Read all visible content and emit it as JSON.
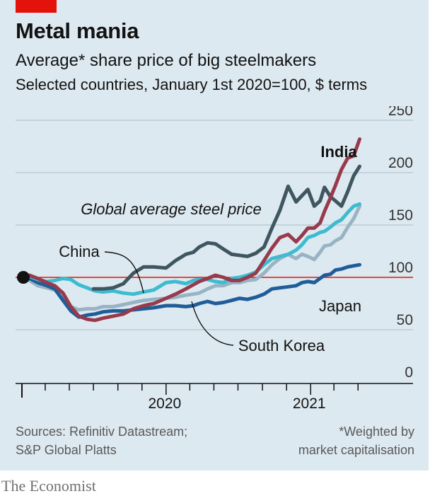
{
  "header": {
    "title": "Metal mania",
    "subtitle": "Average* share price of big steelmakers",
    "subsubtitle": "Selected countries, January 1st 2020=100, $ terms"
  },
  "footer": {
    "sources_line1": "Sources: Refinitiv Datastream;",
    "sources_line2": "S&P Global Platts",
    "note_line1": "*Weighted by",
    "note_line2": "market capitalisation",
    "brand": "The Economist"
  },
  "colors": {
    "panel_bg": "#dde9f0",
    "brand_red": "#e3120b",
    "baseline_red": "#e3120b"
  },
  "chart_data": {
    "type": "line",
    "title": "Average* share price of big steelmakers",
    "subtitle": "Selected countries, January 1st 2020=100, $ terms",
    "y_ticks": [
      0,
      50,
      100,
      150,
      200,
      250
    ],
    "ylim": [
      0,
      250
    ],
    "reference_line": 100,
    "x_tick_labels": [
      {
        "label": "2020",
        "date": "2020-01-01"
      },
      {
        "label": "2021",
        "date": "2021-01-01"
      }
    ],
    "xlim": [
      "2019-01-01",
      "2021-05-31"
    ],
    "grid": "horizontal",
    "labels": {
      "india": "India",
      "global": "Global average steel price",
      "china": "China",
      "japan": "Japan",
      "south_korea": "South Korea"
    },
    "series": [
      {
        "key": "india",
        "name": "India",
        "color": "#973a4b",
        "width": 5,
        "points": [
          [
            "2019-01-01",
            100
          ],
          [
            "2019-01-20",
            102
          ],
          [
            "2019-02-10",
            99
          ],
          [
            "2019-03-05",
            95
          ],
          [
            "2019-03-25",
            92
          ],
          [
            "2019-04-15",
            85
          ],
          [
            "2019-05-05",
            72
          ],
          [
            "2019-05-25",
            63
          ],
          [
            "2019-06-15",
            60
          ],
          [
            "2019-07-05",
            59
          ],
          [
            "2019-07-25",
            61
          ],
          [
            "2019-08-20",
            63
          ],
          [
            "2019-09-15",
            65
          ],
          [
            "2019-10-10",
            70
          ],
          [
            "2019-11-05",
            73
          ],
          [
            "2019-12-01",
            75
          ],
          [
            "2020-01-01",
            80
          ],
          [
            "2020-01-25",
            84
          ],
          [
            "2020-02-20",
            89
          ],
          [
            "2020-03-10",
            93
          ],
          [
            "2020-03-25",
            96
          ],
          [
            "2020-04-15",
            99
          ],
          [
            "2020-05-05",
            102
          ],
          [
            "2020-05-25",
            100
          ],
          [
            "2020-06-15",
            97
          ],
          [
            "2020-07-05",
            97
          ],
          [
            "2020-07-25",
            100
          ],
          [
            "2020-08-15",
            104
          ],
          [
            "2020-09-05",
            116
          ],
          [
            "2020-09-25",
            128
          ],
          [
            "2020-10-15",
            138
          ],
          [
            "2020-11-05",
            141
          ],
          [
            "2020-11-25",
            134
          ],
          [
            "2020-12-10",
            140
          ],
          [
            "2020-12-25",
            147
          ],
          [
            "2021-01-10",
            147
          ],
          [
            "2021-01-25",
            152
          ],
          [
            "2021-02-05",
            163
          ],
          [
            "2021-02-20",
            176
          ],
          [
            "2021-03-05",
            188
          ],
          [
            "2021-03-20",
            203
          ],
          [
            "2021-04-05",
            214
          ],
          [
            "2021-04-20",
            216
          ],
          [
            "2021-05-05",
            232
          ]
        ]
      },
      {
        "key": "global",
        "name": "Global average steel price",
        "color": "#3f5661",
        "width": 5,
        "points": [
          [
            "2019-07-01",
            89
          ],
          [
            "2019-07-25",
            89
          ],
          [
            "2019-08-20",
            90
          ],
          [
            "2019-09-15",
            94
          ],
          [
            "2019-10-10",
            104
          ],
          [
            "2019-11-05",
            110
          ],
          [
            "2019-12-01",
            110
          ],
          [
            "2020-01-01",
            109
          ],
          [
            "2020-01-25",
            116
          ],
          [
            "2020-02-20",
            122
          ],
          [
            "2020-03-10",
            124
          ],
          [
            "2020-03-25",
            129
          ],
          [
            "2020-04-15",
            133
          ],
          [
            "2020-05-05",
            132
          ],
          [
            "2020-05-25",
            127
          ],
          [
            "2020-06-15",
            122
          ],
          [
            "2020-07-05",
            121
          ],
          [
            "2020-07-25",
            120
          ],
          [
            "2020-08-15",
            123
          ],
          [
            "2020-09-05",
            129
          ],
          [
            "2020-09-25",
            147
          ],
          [
            "2020-10-15",
            164
          ],
          [
            "2020-11-05",
            187
          ],
          [
            "2020-11-25",
            172
          ],
          [
            "2020-12-10",
            178
          ],
          [
            "2020-12-25",
            184
          ],
          [
            "2021-01-10",
            168
          ],
          [
            "2021-01-25",
            173
          ],
          [
            "2021-02-05",
            186
          ],
          [
            "2021-02-20",
            177
          ],
          [
            "2021-03-05",
            173
          ],
          [
            "2021-03-20",
            168
          ],
          [
            "2021-04-05",
            182
          ],
          [
            "2021-04-20",
            197
          ],
          [
            "2021-05-05",
            206
          ]
        ]
      },
      {
        "key": "china",
        "name": "China",
        "color": "#3dbbcf",
        "width": 5,
        "points": [
          [
            "2019-01-01",
            100
          ],
          [
            "2019-01-20",
            101
          ],
          [
            "2019-02-10",
            98
          ],
          [
            "2019-03-05",
            96
          ],
          [
            "2019-03-25",
            97
          ],
          [
            "2019-04-15",
            99
          ],
          [
            "2019-05-05",
            98
          ],
          [
            "2019-05-25",
            93
          ],
          [
            "2019-06-15",
            90
          ],
          [
            "2019-07-05",
            87
          ],
          [
            "2019-07-25",
            86
          ],
          [
            "2019-08-20",
            87
          ],
          [
            "2019-09-15",
            85
          ],
          [
            "2019-10-10",
            84
          ],
          [
            "2019-11-05",
            86
          ],
          [
            "2019-12-01",
            88
          ],
          [
            "2020-01-01",
            95
          ],
          [
            "2020-01-25",
            96
          ],
          [
            "2020-02-20",
            94
          ],
          [
            "2020-03-10",
            97
          ],
          [
            "2020-03-25",
            98
          ],
          [
            "2020-04-15",
            98
          ],
          [
            "2020-05-05",
            96
          ],
          [
            "2020-05-25",
            95
          ],
          [
            "2020-06-15",
            99
          ],
          [
            "2020-07-05",
            100
          ],
          [
            "2020-07-25",
            102
          ],
          [
            "2020-08-15",
            105
          ],
          [
            "2020-09-05",
            112
          ],
          [
            "2020-09-25",
            118
          ],
          [
            "2020-10-15",
            120
          ],
          [
            "2020-11-05",
            122
          ],
          [
            "2020-11-25",
            126
          ],
          [
            "2020-12-10",
            131
          ],
          [
            "2020-12-25",
            138
          ],
          [
            "2021-01-10",
            140
          ],
          [
            "2021-01-25",
            143
          ],
          [
            "2021-02-05",
            144
          ],
          [
            "2021-02-20",
            148
          ],
          [
            "2021-03-05",
            152
          ],
          [
            "2021-03-20",
            155
          ],
          [
            "2021-04-05",
            162
          ],
          [
            "2021-04-20",
            168
          ],
          [
            "2021-05-05",
            170
          ]
        ]
      },
      {
        "key": "south_korea",
        "name": "South Korea",
        "color": "#98b4c4",
        "width": 5,
        "points": [
          [
            "2019-01-01",
            100
          ],
          [
            "2019-01-20",
            97
          ],
          [
            "2019-02-10",
            92
          ],
          [
            "2019-03-05",
            90
          ],
          [
            "2019-03-25",
            88
          ],
          [
            "2019-04-15",
            80
          ],
          [
            "2019-05-05",
            72
          ],
          [
            "2019-05-25",
            69
          ],
          [
            "2019-06-15",
            70
          ],
          [
            "2019-07-05",
            70
          ],
          [
            "2019-07-25",
            72
          ],
          [
            "2019-08-20",
            72
          ],
          [
            "2019-09-15",
            74
          ],
          [
            "2019-10-10",
            76
          ],
          [
            "2019-11-05",
            78
          ],
          [
            "2019-12-01",
            79
          ],
          [
            "2020-01-01",
            80
          ],
          [
            "2020-01-25",
            81
          ],
          [
            "2020-02-20",
            83
          ],
          [
            "2020-03-10",
            84
          ],
          [
            "2020-03-25",
            85
          ],
          [
            "2020-04-15",
            89
          ],
          [
            "2020-05-05",
            92
          ],
          [
            "2020-05-25",
            92
          ],
          [
            "2020-06-15",
            95
          ],
          [
            "2020-07-05",
            95
          ],
          [
            "2020-07-25",
            97
          ],
          [
            "2020-08-15",
            98
          ],
          [
            "2020-09-05",
            104
          ],
          [
            "2020-09-25",
            112
          ],
          [
            "2020-10-15",
            118
          ],
          [
            "2020-11-05",
            122
          ],
          [
            "2020-11-25",
            118
          ],
          [
            "2020-12-10",
            122
          ],
          [
            "2020-12-25",
            120
          ],
          [
            "2021-01-10",
            117
          ],
          [
            "2021-01-25",
            124
          ],
          [
            "2021-02-05",
            130
          ],
          [
            "2021-02-20",
            131
          ],
          [
            "2021-03-05",
            135
          ],
          [
            "2021-03-20",
            138
          ],
          [
            "2021-04-05",
            148
          ],
          [
            "2021-04-20",
            156
          ],
          [
            "2021-05-05",
            168
          ]
        ]
      },
      {
        "key": "japan",
        "name": "Japan",
        "color": "#1f5c99",
        "width": 5,
        "points": [
          [
            "2019-01-01",
            100
          ],
          [
            "2019-01-20",
            99
          ],
          [
            "2019-02-10",
            95
          ],
          [
            "2019-03-05",
            92
          ],
          [
            "2019-03-25",
            89
          ],
          [
            "2019-04-15",
            78
          ],
          [
            "2019-05-05",
            68
          ],
          [
            "2019-05-25",
            62
          ],
          [
            "2019-06-15",
            64
          ],
          [
            "2019-07-05",
            65
          ],
          [
            "2019-07-25",
            67
          ],
          [
            "2019-08-20",
            68
          ],
          [
            "2019-09-15",
            68
          ],
          [
            "2019-10-10",
            69
          ],
          [
            "2019-11-05",
            70
          ],
          [
            "2019-12-01",
            71
          ],
          [
            "2020-01-01",
            73
          ],
          [
            "2020-01-25",
            73
          ],
          [
            "2020-02-20",
            72
          ],
          [
            "2020-03-10",
            73
          ],
          [
            "2020-03-25",
            75
          ],
          [
            "2020-04-15",
            77
          ],
          [
            "2020-05-05",
            75
          ],
          [
            "2020-05-25",
            76
          ],
          [
            "2020-06-15",
            78
          ],
          [
            "2020-07-05",
            80
          ],
          [
            "2020-07-25",
            79
          ],
          [
            "2020-08-15",
            81
          ],
          [
            "2020-09-05",
            84
          ],
          [
            "2020-09-25",
            89
          ],
          [
            "2020-10-15",
            90
          ],
          [
            "2020-11-05",
            91
          ],
          [
            "2020-11-25",
            92
          ],
          [
            "2020-12-10",
            95
          ],
          [
            "2020-12-25",
            96
          ],
          [
            "2021-01-10",
            95
          ],
          [
            "2021-01-25",
            99
          ],
          [
            "2021-02-05",
            102
          ],
          [
            "2021-02-20",
            103
          ],
          [
            "2021-03-05",
            107
          ],
          [
            "2021-03-20",
            108
          ],
          [
            "2021-04-05",
            110
          ],
          [
            "2021-04-20",
            111
          ],
          [
            "2021-05-05",
            112
          ]
        ]
      }
    ]
  }
}
